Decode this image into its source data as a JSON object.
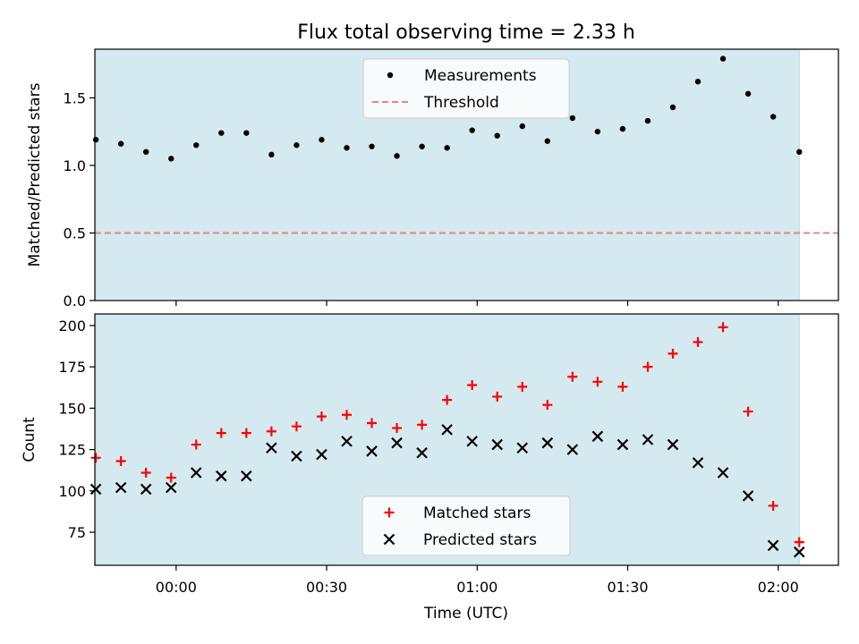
{
  "chart_data": [
    {
      "type": "scatter",
      "title": "Flux total observing time = 2.33 h",
      "xlabel": "",
      "ylabel": "Matched/Predicted stars",
      "xlim": [
        -16.2,
        132
      ],
      "ylim": [
        0,
        1.86
      ],
      "yticks": [
        0.0,
        0.5,
        1.0,
        1.5
      ],
      "ytick_labels": [
        "0.0",
        "0.5",
        "1.0",
        "1.5"
      ],
      "shaded_span": {
        "x": [
          -16.0,
          124.2
        ],
        "color": "#d4eaf0"
      },
      "threshold": {
        "name": "Threshold",
        "y": 0.5,
        "color": "#f08080"
      },
      "legend": {
        "placement": "top-center",
        "entries": [
          "Measurements",
          "Threshold"
        ]
      },
      "series": [
        {
          "name": "Measurements",
          "marker": "dot",
          "color": "#000000",
          "x": [
            -16.0,
            -11.0,
            -6.0,
            -1.0,
            4.0,
            9.0,
            14.0,
            19.0,
            24.0,
            29.0,
            34.0,
            39.0,
            44.0,
            49.0,
            54.0,
            59.0,
            64.0,
            69.0,
            74.0,
            79.0,
            84.0,
            89.0,
            94.0,
            99.0,
            104.0,
            109.0,
            114.0,
            119.0,
            124.2
          ],
          "y": [
            1.19,
            1.16,
            1.1,
            1.05,
            1.15,
            1.24,
            1.24,
            1.08,
            1.15,
            1.19,
            1.13,
            1.14,
            1.07,
            1.14,
            1.13,
            1.26,
            1.22,
            1.29,
            1.18,
            1.35,
            1.25,
            1.27,
            1.33,
            1.43,
            1.62,
            1.79,
            1.53,
            1.36,
            1.1
          ]
        }
      ]
    },
    {
      "type": "scatter",
      "title": "",
      "xlabel": "Time (UTC)",
      "ylabel": "Count",
      "xlim": [
        -16.2,
        132
      ],
      "ylim": [
        55,
        207
      ],
      "yticks": [
        75,
        100,
        125,
        150,
        175,
        200
      ],
      "ytick_labels": [
        "75",
        "100",
        "125",
        "150",
        "175",
        "200"
      ],
      "xticks": [
        0,
        30,
        60,
        90,
        120
      ],
      "xtick_labels": [
        "00:00",
        "00:30",
        "01:00",
        "01:30",
        "02:00"
      ],
      "shaded_span": {
        "x": [
          -16.0,
          124.2
        ],
        "color": "#d4eaf0"
      },
      "legend": {
        "placement": "bottom-center",
        "entries": [
          "Matched stars",
          "Predicted stars"
        ]
      },
      "series": [
        {
          "name": "Matched stars",
          "marker": "plus",
          "color": "#ff0000",
          "x": [
            -16.0,
            -11.0,
            -6.0,
            -1.0,
            4.0,
            9.0,
            14.0,
            19.0,
            24.0,
            29.0,
            34.0,
            39.0,
            44.0,
            49.0,
            54.0,
            59.0,
            64.0,
            69.0,
            74.0,
            79.0,
            84.0,
            89.0,
            94.0,
            99.0,
            104.0,
            109.0,
            114.0,
            119.0,
            124.2
          ],
          "y": [
            120,
            118,
            111,
            108,
            128,
            135,
            135,
            136,
            139,
            145,
            146,
            141,
            138,
            140,
            155,
            164,
            157,
            163,
            152,
            169,
            166,
            163,
            175,
            183,
            190,
            199,
            148,
            91,
            69
          ]
        },
        {
          "name": "Predicted stars",
          "marker": "x",
          "color": "#000000",
          "x": [
            -16.0,
            -11.0,
            -6.0,
            -1.0,
            4.0,
            9.0,
            14.0,
            19.0,
            24.0,
            29.0,
            34.0,
            39.0,
            44.0,
            49.0,
            54.0,
            59.0,
            64.0,
            69.0,
            74.0,
            79.0,
            84.0,
            89.0,
            94.0,
            99.0,
            104.0,
            109.0,
            114.0,
            119.0,
            124.2
          ],
          "y": [
            101,
            102,
            101,
            102,
            111,
            109,
            109,
            126,
            121,
            122,
            130,
            124,
            129,
            123,
            137,
            130,
            128,
            126,
            129,
            125,
            133,
            128,
            131,
            128,
            117,
            111,
            97,
            67,
            63
          ]
        }
      ]
    }
  ]
}
